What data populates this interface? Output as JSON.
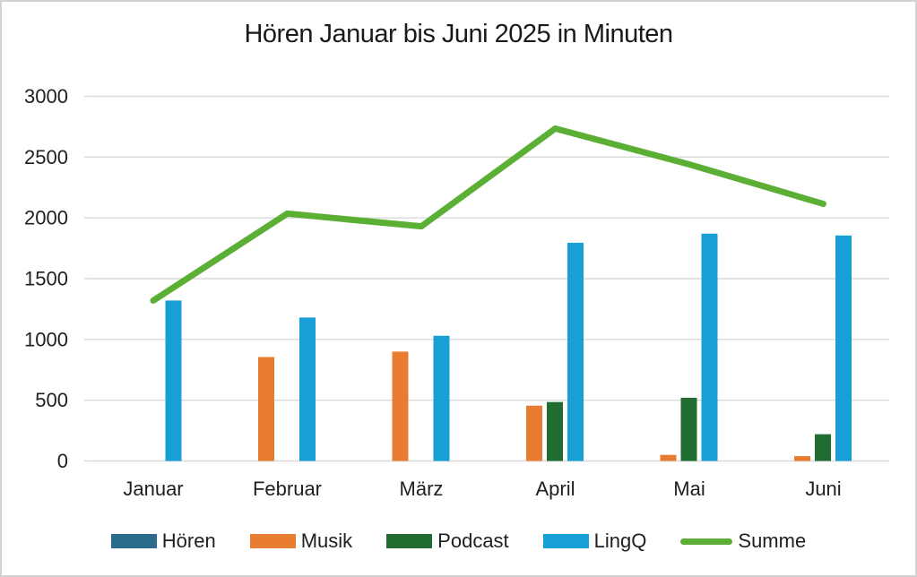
{
  "frame": {
    "background": "#ffffff",
    "border_color": "#d2d2d2"
  },
  "chart_data": {
    "type": "bar",
    "subtype": "grouped bars with line overlay (combo chart)",
    "title": "Hören Januar bis Juni 2025 in Minuten",
    "categories": [
      "Januar",
      "Februar",
      "März",
      "April",
      "Mai",
      "Juni"
    ],
    "series": [
      {
        "name": "Hören",
        "type": "bar",
        "color": "#2B6C8C",
        "values": [
          0,
          0,
          0,
          0,
          0,
          0
        ]
      },
      {
        "name": "Musik",
        "type": "bar",
        "color": "#E87D31",
        "values": [
          0,
          855,
          900,
          455,
          50,
          40
        ]
      },
      {
        "name": "Podcast",
        "type": "bar",
        "color": "#206C31",
        "values": [
          0,
          0,
          0,
          485,
          520,
          220
        ]
      },
      {
        "name": "LingQ",
        "type": "bar",
        "color": "#189FD6",
        "values": [
          1320,
          1180,
          1030,
          1795,
          1870,
          1855
        ]
      },
      {
        "name": "Summe",
        "type": "line",
        "color": "#5BAF35",
        "values": [
          1320,
          2035,
          1930,
          2735,
          2440,
          2115
        ]
      }
    ],
    "xlabel": "",
    "ylabel": "",
    "ylim": [
      0,
      3000
    ],
    "ytick_interval": 500,
    "yticks": [
      0,
      500,
      1000,
      1500,
      2000,
      2500,
      3000
    ],
    "grid": "horizontal",
    "gridline_color": "#D9D9D9",
    "text_color": "#1f1f1f",
    "legend_position": "bottom"
  }
}
